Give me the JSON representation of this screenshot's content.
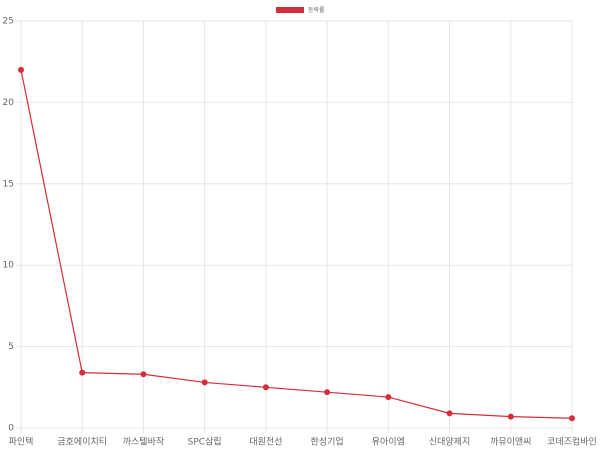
{
  "chart_data": {
    "type": "line",
    "categories": [
      "파인텍",
      "금호에이치티",
      "까스텔바작",
      "SPC삼립",
      "대원전선",
      "한성기업",
      "유아이엠",
      "신대양제지",
      "까뮤이앤씨",
      "코데즈컴바인"
    ],
    "series": [
      {
        "name": "등락률",
        "color": "#d62d3a",
        "values": [
          22,
          3.4,
          3.3,
          2.8,
          2.5,
          2.2,
          1.9,
          0.9,
          0.7,
          0.6
        ]
      }
    ],
    "ylim": [
      0,
      25
    ],
    "yticks": [
      0,
      5,
      10,
      15,
      20,
      25
    ],
    "grid": true,
    "legend": "top"
  }
}
